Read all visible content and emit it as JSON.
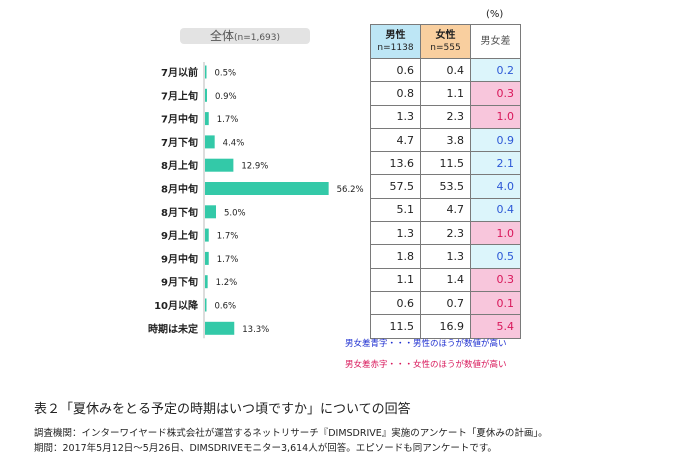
{
  "chart_data": {
    "type": "bar",
    "title": "表２「夏休みをとる予定の時期はいつ頃ですか」についての回答",
    "overall_label": "全体",
    "overall_n": "(n=1,693)",
    "categories": [
      "7月以前",
      "7月上旬",
      "7月中旬",
      "7月下旬",
      "8月上旬",
      "8月中旬",
      "8月下旬",
      "9月上旬",
      "9月中旬",
      "9月下旬",
      "10月以降",
      "時期は未定"
    ],
    "values": [
      0.5,
      0.9,
      1.7,
      4.4,
      12.9,
      56.2,
      5.0,
      1.7,
      1.7,
      1.2,
      0.6,
      13.3
    ],
    "value_labels": [
      "0.5%",
      "0.9%",
      "1.7%",
      "4.4%",
      "12.9%",
      "56.2%",
      "5.0%",
      "1.7%",
      "1.7%",
      "1.2%",
      "0.6%",
      "13.3%"
    ],
    "bar_color": "#33c9a8",
    "xlim": [
      0,
      60
    ]
  },
  "table": {
    "unit": "(%)",
    "male_header": "男性",
    "male_n": "n=1138",
    "female_header": "女性",
    "female_n": "n=555",
    "diff_header": "男女差",
    "male_values": [
      "0.6",
      "0.8",
      "1.3",
      "4.7",
      "13.6",
      "57.5",
      "5.1",
      "1.3",
      "1.8",
      "1.1",
      "0.6",
      "11.5"
    ],
    "female_values": [
      "0.4",
      "1.1",
      "2.3",
      "3.8",
      "11.5",
      "53.5",
      "4.7",
      "2.3",
      "1.3",
      "1.4",
      "0.7",
      "16.9"
    ],
    "diff_values": [
      "0.2",
      "0.3",
      "1.0",
      "0.9",
      "2.1",
      "4.0",
      "0.4",
      "1.0",
      "0.5",
      "0.3",
      "0.1",
      "5.4"
    ],
    "diff_colors": [
      "blue",
      "red",
      "red",
      "blue",
      "blue",
      "blue",
      "blue",
      "red",
      "blue",
      "red",
      "red",
      "red"
    ],
    "color_male": "#bde6f5",
    "color_female": "#f9cf9f",
    "color_blue": "#dcf5fb",
    "color_red": "#f8c6dc"
  },
  "legend": {
    "blue": "男女差青字・・・男性のほうが数値が高い",
    "red": "男女差赤字・・・女性のほうが数値が高い"
  },
  "source": {
    "line1": "調査機関：インターワイヤード株式会社が運営するネットリサーチ『DIMSDRIVE』実施のアンケート「夏休みの計画」。",
    "line2": "期間：2017年5月12日～5月26日、DIMSDRIVEモニター3,614人が回答。エピソードも同アンケートです。"
  }
}
